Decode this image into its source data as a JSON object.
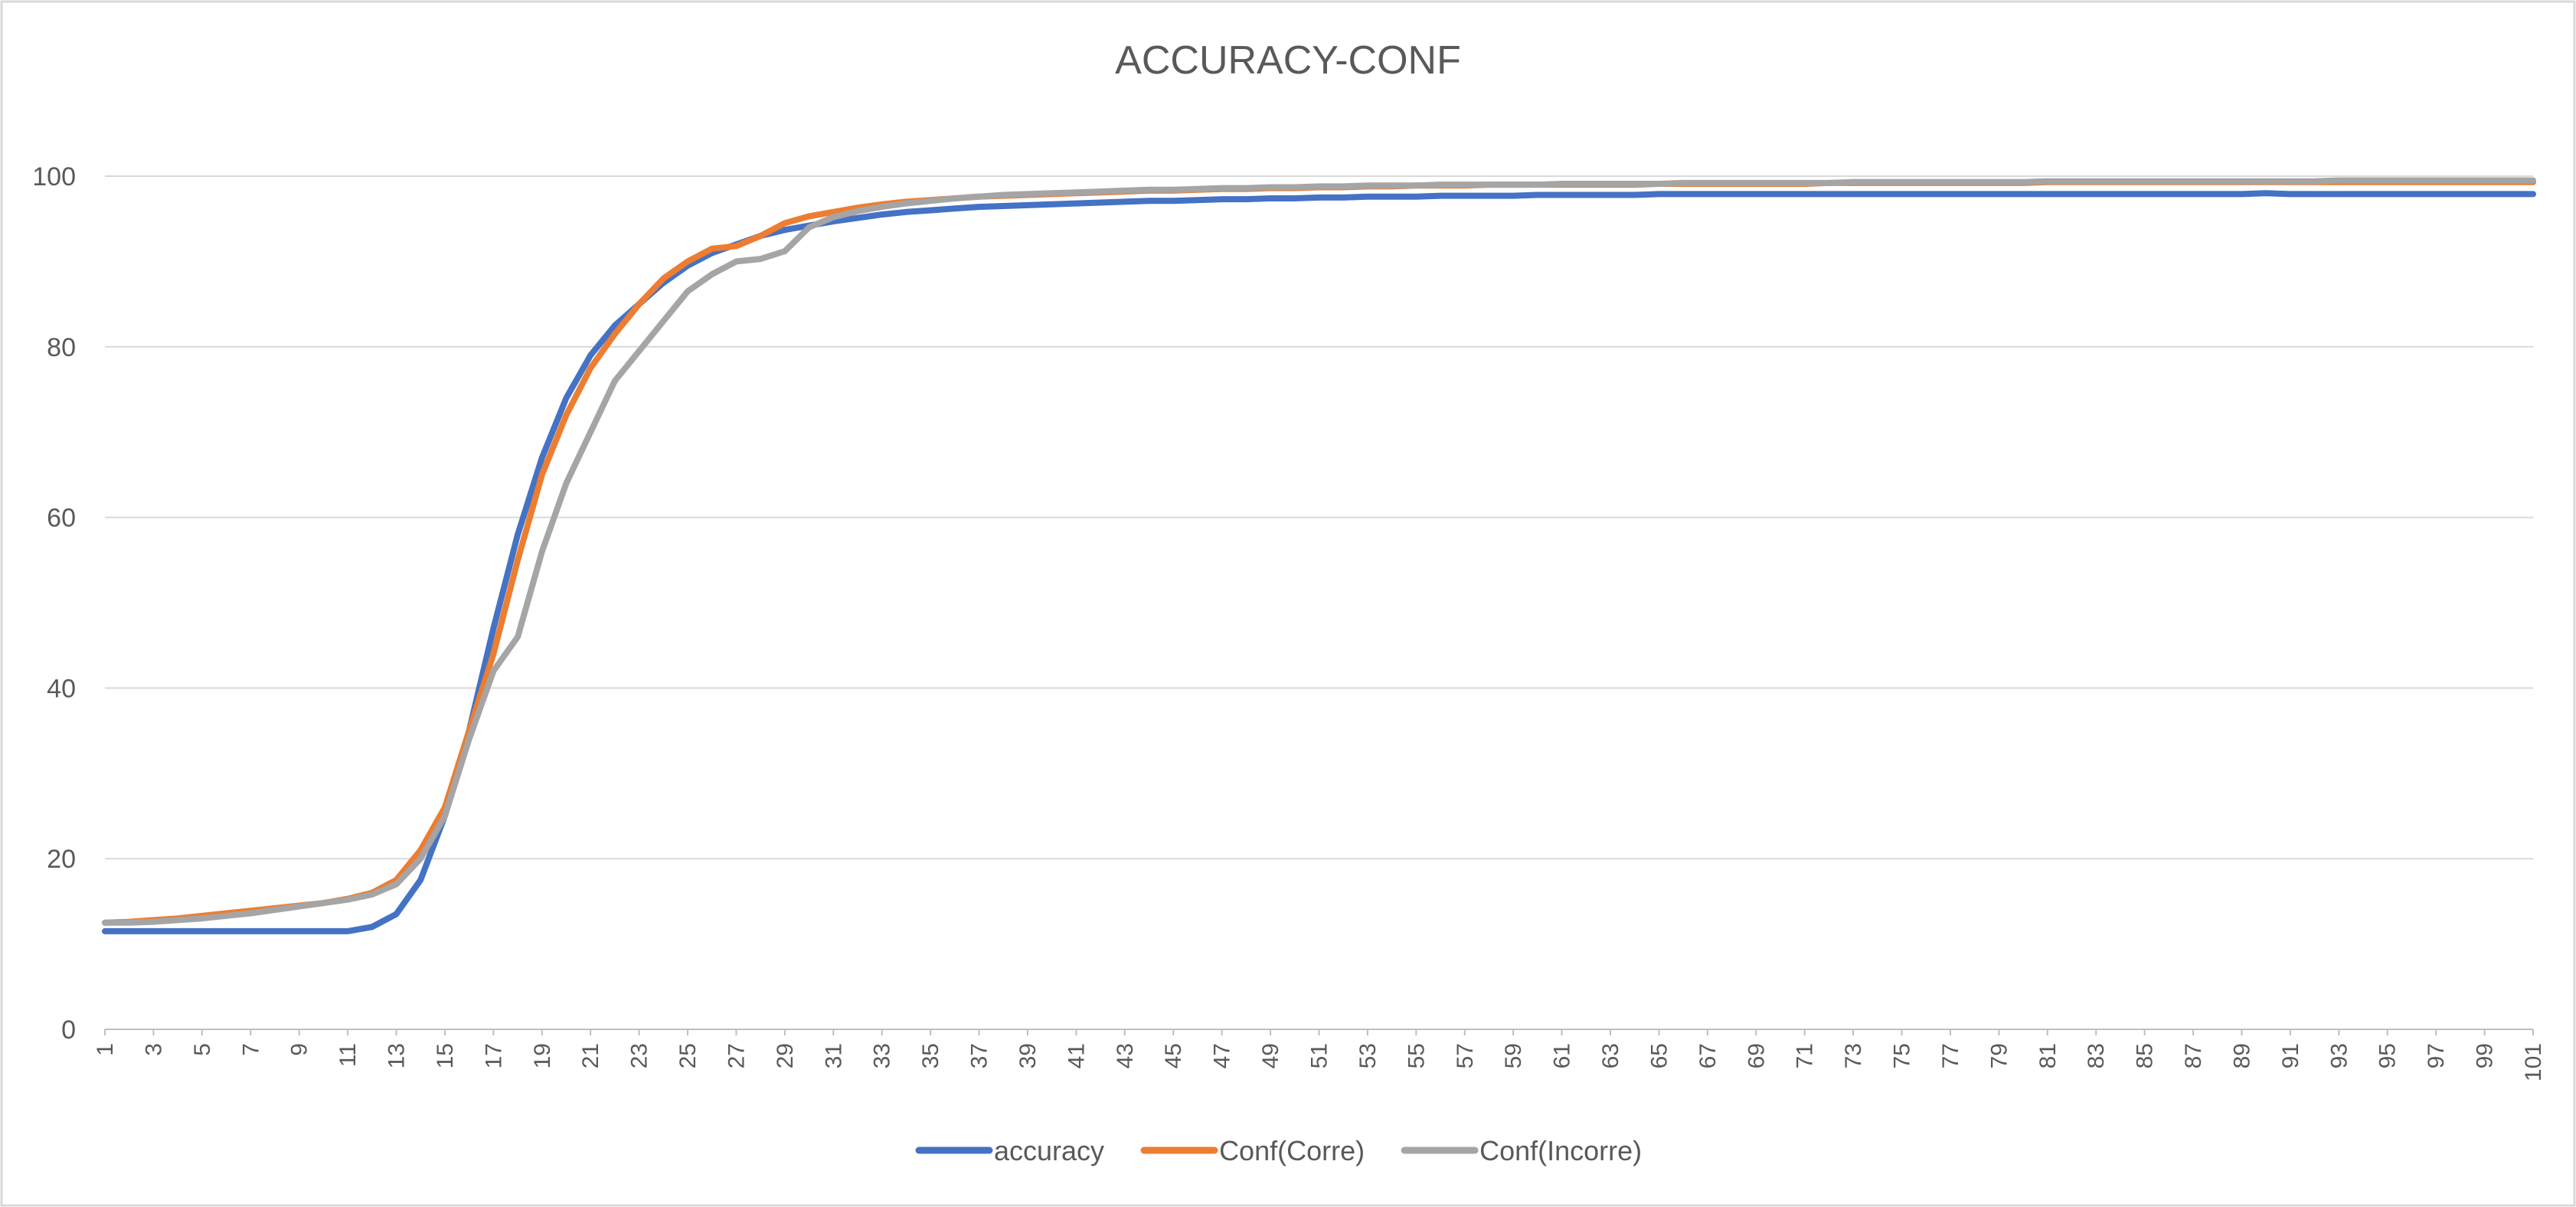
{
  "chart_data": {
    "type": "line",
    "title": "ACCURACY-CONF",
    "xlabel": "",
    "ylabel": "",
    "ylim": [
      0,
      100
    ],
    "y_ticks": [
      0,
      20,
      40,
      60,
      80,
      100
    ],
    "x_start": 1,
    "x_end": 101,
    "x_tick_step": 2,
    "grid": "horizontal",
    "legend_position": "bottom",
    "series": [
      {
        "name": "accuracy",
        "color": "#4472C4",
        "values": [
          11.5,
          11.5,
          11.5,
          11.5,
          11.5,
          11.5,
          11.5,
          11.5,
          11.5,
          11.5,
          11.5,
          12,
          13.5,
          17.5,
          25,
          35,
          47,
          58,
          67,
          74,
          79,
          82.5,
          85,
          87.5,
          89.5,
          91,
          92,
          93,
          93.7,
          94.2,
          94.7,
          95.1,
          95.5,
          95.8,
          96,
          96.2,
          96.4,
          96.5,
          96.6,
          96.7,
          96.8,
          96.9,
          97,
          97.1,
          97.1,
          97.2,
          97.3,
          97.3,
          97.4,
          97.4,
          97.5,
          97.5,
          97.6,
          97.6,
          97.6,
          97.7,
          97.7,
          97.7,
          97.7,
          97.8,
          97.8,
          97.8,
          97.8,
          97.8,
          97.9,
          97.9,
          97.9,
          97.9,
          97.9,
          97.9,
          97.9,
          97.9,
          97.9,
          97.9,
          97.9,
          97.9,
          97.9,
          97.9,
          97.9,
          97.9,
          97.9,
          97.9,
          97.9,
          97.9,
          97.9,
          97.9,
          97.9,
          97.9,
          97.9,
          98,
          97.9,
          97.9,
          97.9,
          97.9,
          97.9,
          97.9,
          97.9,
          97.9,
          97.9,
          97.9,
          97.9
        ]
      },
      {
        "name": "Conf(Corre)",
        "color": "#ED7D31",
        "values": [
          12.5,
          12.6,
          12.8,
          13,
          13.3,
          13.6,
          13.9,
          14.2,
          14.5,
          14.8,
          15.3,
          16,
          17.5,
          21,
          26,
          35,
          44,
          55,
          65,
          72,
          77.5,
          81.5,
          85,
          88,
          90,
          91.5,
          91.8,
          93,
          94.5,
          95.3,
          95.8,
          96.3,
          96.7,
          97,
          97.2,
          97.4,
          97.6,
          97.7,
          97.8,
          97.9,
          98,
          98.1,
          98.2,
          98.3,
          98.3,
          98.4,
          98.5,
          98.5,
          98.6,
          98.6,
          98.7,
          98.7,
          98.8,
          98.8,
          98.9,
          98.9,
          98.9,
          99,
          99,
          99,
          99,
          99,
          99,
          99,
          99.1,
          99.1,
          99.1,
          99.1,
          99.1,
          99.1,
          99.1,
          99.2,
          99.2,
          99.2,
          99.2,
          99.2,
          99.2,
          99.2,
          99.2,
          99.2,
          99.3,
          99.3,
          99.3,
          99.3,
          99.3,
          99.3,
          99.3,
          99.3,
          99.3,
          99.3,
          99.3,
          99.3,
          99.3,
          99.3,
          99.3,
          99.3,
          99.3,
          99.3,
          99.3,
          99.3,
          99.3
        ]
      },
      {
        "name": "Conf(Incorre)",
        "color": "#A5A5A5",
        "values": [
          12.5,
          12.5,
          12.6,
          12.8,
          13,
          13.3,
          13.6,
          14,
          14.4,
          14.8,
          15.2,
          15.8,
          17,
          20,
          25,
          34,
          42,
          46,
          56,
          64,
          70,
          76,
          79.5,
          83,
          86.5,
          88.5,
          90,
          90.3,
          91.2,
          94,
          95.2,
          95.9,
          96.4,
          96.8,
          97.1,
          97.4,
          97.6,
          97.8,
          97.9,
          98,
          98.1,
          98.2,
          98.3,
          98.4,
          98.4,
          98.5,
          98.6,
          98.6,
          98.7,
          98.7,
          98.8,
          98.8,
          98.9,
          98.9,
          98.9,
          99,
          99,
          99,
          99,
          99,
          99.1,
          99.1,
          99.1,
          99.1,
          99.1,
          99.2,
          99.2,
          99.2,
          99.2,
          99.2,
          99.2,
          99.2,
          99.3,
          99.3,
          99.3,
          99.3,
          99.3,
          99.3,
          99.3,
          99.3,
          99.4,
          99.4,
          99.4,
          99.4,
          99.4,
          99.4,
          99.4,
          99.4,
          99.4,
          99.4,
          99.4,
          99.4,
          99.5,
          99.5,
          99.5,
          99.5,
          99.5,
          99.5,
          99.5,
          99.5,
          99.5
        ]
      }
    ]
  }
}
